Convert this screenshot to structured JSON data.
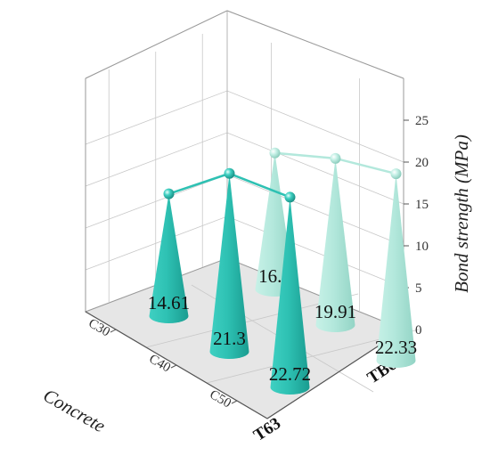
{
  "chart_data": {
    "type": "bar",
    "subtype": "3d-cone",
    "x_categories": [
      "C30",
      "C40",
      "C50"
    ],
    "y_categories": [
      "T63",
      "TB63"
    ],
    "series": [
      {
        "name": "T63",
        "values": [
          14.61,
          21.3,
          22.72
        ],
        "color": "#2ec1b3"
      },
      {
        "name": "TB63",
        "values": [
          16.3,
          19.91,
          22.33
        ],
        "color": "#b3e8dc"
      }
    ],
    "value_labels": {
      "T63": [
        "14.61",
        "21.3",
        "22.72"
      ],
      "TB63": [
        "16.3",
        "19.91",
        "22.33"
      ]
    },
    "xlabel": "Concrete",
    "zlabel": "Bond strength (MPa)",
    "zlim": [
      0,
      25
    ],
    "z_ticks": [
      "0",
      "5",
      "10",
      "15",
      "20",
      "25"
    ],
    "grid": true,
    "legend": "none"
  }
}
